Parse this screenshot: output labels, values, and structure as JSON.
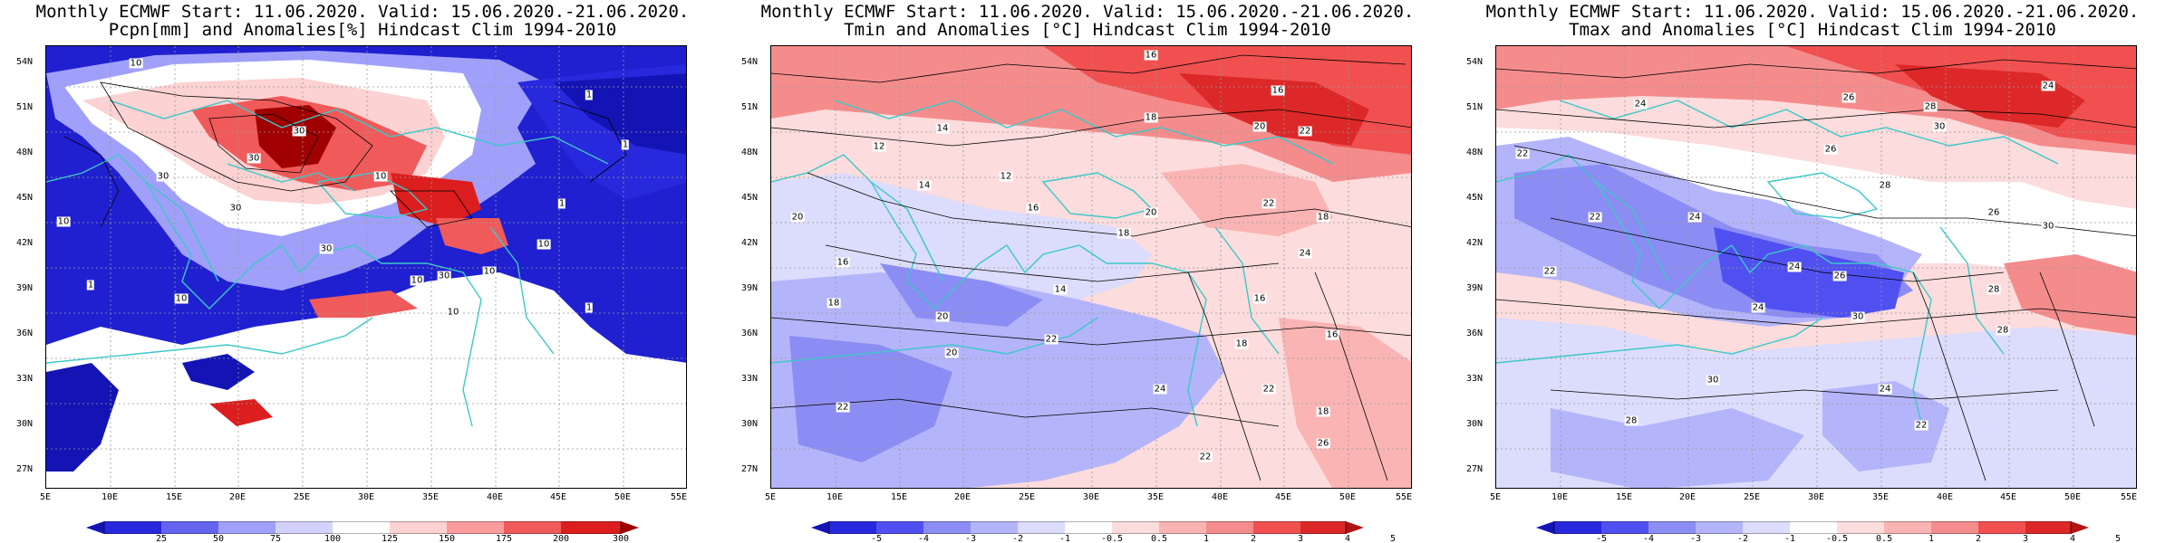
{
  "panels": [
    {
      "id": "pcpn",
      "title_line1": "Monthly ECMWF Start: 11.06.2020. Valid: 15.06.2020.-21.06.2020.",
      "title_line2": "Pcpn[mm] and Anomalies[%] Hindcast Clim 1994-2010",
      "colorbar": {
        "colors": [
          "#1414b4",
          "#2828dc",
          "#6464f0",
          "#a0a0fa",
          "#d2d2fc",
          "#ffffff",
          "#fcd2d2",
          "#fa9c9c",
          "#f05a5a",
          "#dc1e1e",
          "#a00000"
        ],
        "labels": [
          "25",
          "50",
          "75",
          "100",
          "125",
          "150",
          "175",
          "200",
          "300"
        ]
      },
      "contour_labels": [
        "10",
        "30",
        "30",
        "30",
        "10",
        "30",
        "10",
        "10",
        "10",
        "10",
        "30",
        "10",
        "1",
        "1",
        "1",
        "1",
        "1",
        "30",
        "10"
      ]
    },
    {
      "id": "tmin",
      "title_line1": "Monthly ECMWF Start: 11.06.2020. Valid: 15.06.2020.-21.06.2020.",
      "title_line2": "Tmin and Anomalies [°C] Hindcast Clim 1994-2010",
      "colorbar": {
        "colors": [
          "#1414b4",
          "#2828dc",
          "#5050f0",
          "#8c8cf5",
          "#b4b4fa",
          "#dcdcfc",
          "#ffffff",
          "#fcdcdc",
          "#fab4b4",
          "#f58c8c",
          "#f05050",
          "#dc2828",
          "#b41414"
        ],
        "labels": [
          "-5",
          "-4",
          "-3",
          "-2",
          "-1",
          "-0.5",
          "0.5",
          "1",
          "2",
          "3",
          "4",
          "5"
        ]
      },
      "contour_labels": [
        "16",
        "16",
        "18",
        "20",
        "22",
        "14",
        "12",
        "12",
        "14",
        "16",
        "18",
        "20",
        "22",
        "20",
        "16",
        "18",
        "24",
        "18",
        "20",
        "22",
        "14",
        "16",
        "18",
        "22",
        "24",
        "20",
        "22",
        "16",
        "18",
        "22",
        "26"
      ]
    },
    {
      "id": "tmax",
      "title_line1": "Monthly ECMWF Start: 11.06.2020. Valid: 15.06.2020.-21.06.2020.",
      "title_line2": "Tmax and Anomalies [°C] Hindcast Clim 1994-2010",
      "colorbar": {
        "colors": [
          "#1414b4",
          "#2828dc",
          "#5050f0",
          "#8c8cf5",
          "#b4b4fa",
          "#dcdcfc",
          "#ffffff",
          "#fcdcdc",
          "#fab4b4",
          "#f58c8c",
          "#f05050",
          "#dc2828",
          "#b41414"
        ],
        "labels": [
          "-5",
          "-4",
          "-3",
          "-2",
          "-1",
          "-0.5",
          "0.5",
          "1",
          "2",
          "3",
          "4",
          "5"
        ]
      },
      "contour_labels": [
        "24",
        "26",
        "28",
        "30",
        "26",
        "24",
        "22",
        "28",
        "24",
        "26",
        "22",
        "24",
        "26",
        "30",
        "24",
        "28",
        "30",
        "22",
        "28",
        "30",
        "24",
        "22",
        "28"
      ]
    }
  ],
  "axes": {
    "lat_labels": [
      "54N",
      "51N",
      "48N",
      "45N",
      "42N",
      "39N",
      "36N",
      "33N",
      "30N",
      "27N"
    ],
    "lon_labels": [
      "5E",
      "10E",
      "15E",
      "20E",
      "25E",
      "30E",
      "35E",
      "40E",
      "45E",
      "50E",
      "55E"
    ]
  },
  "colors": {
    "coast": "#3cc8c8",
    "contour": "#000000",
    "grid": "#999999"
  }
}
